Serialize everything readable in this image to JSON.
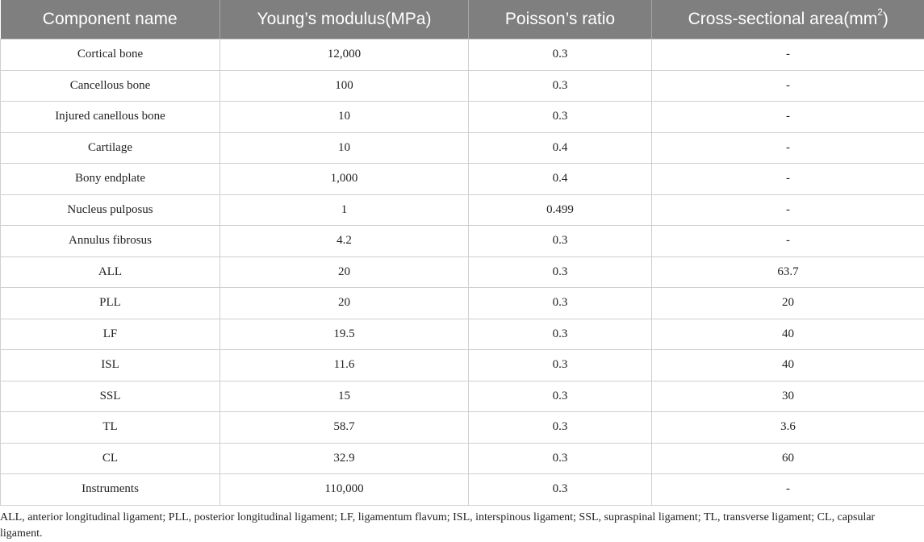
{
  "table": {
    "headers": [
      {
        "text": "Component name"
      },
      {
        "text": "Young’s modulus(MPa)"
      },
      {
        "text": "Poisson’s ratio"
      },
      {
        "text": "Cross-sectional area(mm",
        "sup": "2",
        "suffix": ")"
      }
    ],
    "rows": [
      [
        "Cortical bone",
        "12,000",
        "0.3",
        "-"
      ],
      [
        "Cancellous bone",
        "100",
        "0.3",
        "-"
      ],
      [
        "Injured canellous bone",
        "10",
        "0.3",
        "-"
      ],
      [
        "Cartilage",
        "10",
        "0.4",
        "-"
      ],
      [
        "Bony endplate",
        "1,000",
        "0.4",
        "-"
      ],
      [
        "Nucleus pulposus",
        "1",
        "0.499",
        "-"
      ],
      [
        "Annulus fibrosus",
        "4.2",
        "0.3",
        "-"
      ],
      [
        "ALL",
        "20",
        "0.3",
        "63.7"
      ],
      [
        "PLL",
        "20",
        "0.3",
        "20"
      ],
      [
        "LF",
        "19.5",
        "0.3",
        "40"
      ],
      [
        "ISL",
        "11.6",
        "0.3",
        "40"
      ],
      [
        "SSL",
        "15",
        "0.3",
        "30"
      ],
      [
        "TL",
        "58.7",
        "0.3",
        "3.6"
      ],
      [
        "CL",
        "32.9",
        "0.3",
        "60"
      ],
      [
        "Instruments",
        "110,000",
        "0.3",
        "-"
      ]
    ]
  },
  "footnote": "ALL, anterior longitudinal ligament; PLL, posterior longitudinal ligament; LF, ligamentum flavum; ISL, interspinous ligament; SSL, supraspinal ligament; TL, transverse ligament; CL, capsular ligament.",
  "colors": {
    "header_bg": "#7f7f7f",
    "header_text": "#ffffff",
    "grid": "#cfcfcf"
  }
}
